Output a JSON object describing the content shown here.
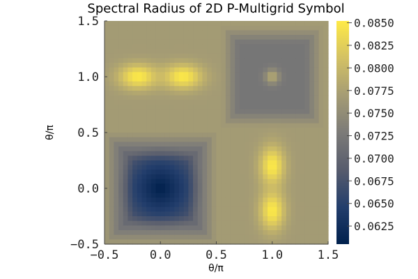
{
  "chart_data": {
    "type": "heatmap",
    "title": "Spectral Radius of 2D P-Multigrid Symbol",
    "xlabel": "θ/π",
    "ylabel": "θ/π",
    "xlim": [
      -0.5,
      1.5
    ],
    "ylim": [
      -0.5,
      1.5
    ],
    "x_ticks": [
      "−0.5",
      "0.0",
      "0.5",
      "1.0",
      "1.5"
    ],
    "x_tick_values": [
      -0.5,
      0.0,
      0.5,
      1.0,
      1.5
    ],
    "y_ticks": [
      "−0.5",
      "0.0",
      "0.5",
      "1.0",
      "1.5"
    ],
    "y_tick_values": [
      -0.5,
      0.0,
      0.5,
      1.0,
      1.5
    ],
    "colorbar": {
      "colormap": "cividis",
      "range": [
        0.0605,
        0.0852
      ],
      "ticks": [
        "0.0625",
        "0.0650",
        "0.0675",
        "0.0700",
        "0.0725",
        "0.0750",
        "0.0775",
        "0.0800",
        "0.0825",
        "0.0850"
      ],
      "tick_values": [
        0.0625,
        0.065,
        0.0675,
        0.07,
        0.0725,
        0.075,
        0.0775,
        0.08,
        0.0825,
        0.085
      ],
      "stops": [
        "#00204d",
        "#233e6c",
        "#575c6d",
        "#7c7b78",
        "#a59c74",
        "#d3c164",
        "#ffea46"
      ]
    },
    "grid_n": 48,
    "features": [
      {
        "region": "background",
        "value": 0.0768
      },
      {
        "region": "low-region",
        "center": [
          0.0,
          0.0
        ],
        "min": 0.0605,
        "edge": 0.0685
      },
      {
        "region": "high-peaks-horizontal",
        "centers": [
          [
            -0.2,
            1.0
          ],
          [
            0.2,
            1.0
          ]
        ],
        "peak": 0.085
      },
      {
        "region": "high-peaks-vertical",
        "centers": [
          [
            1.0,
            0.2
          ],
          [
            1.0,
            -0.2
          ]
        ],
        "peak": 0.085
      },
      {
        "region": "mid-plateau",
        "center": [
          1.0,
          1.0
        ],
        "value": 0.0722,
        "center_peak": 0.0785
      }
    ]
  }
}
